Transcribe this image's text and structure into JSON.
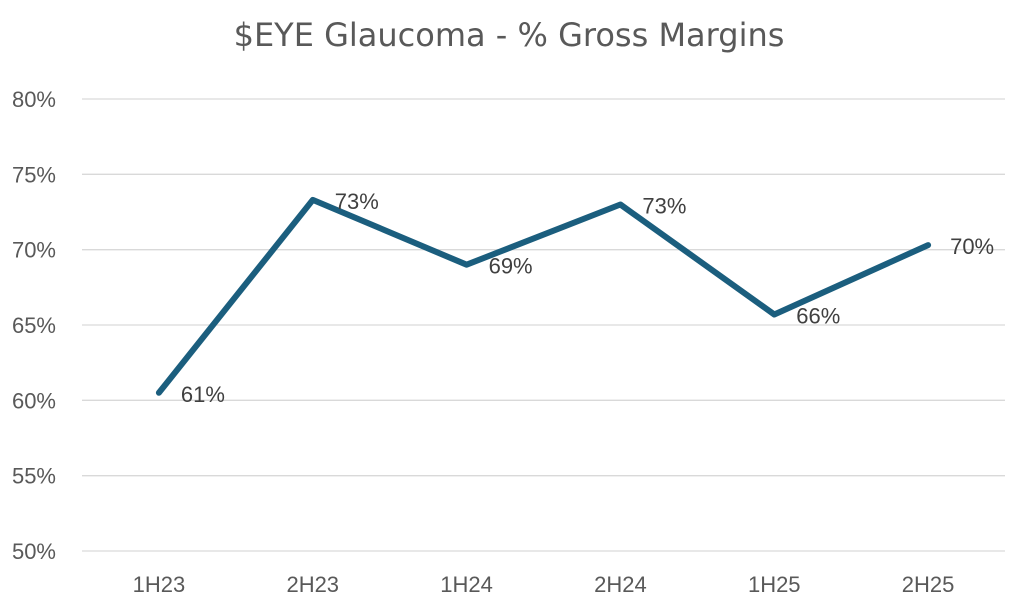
{
  "chart_data": {
    "type": "line",
    "title": "$EYE Glaucoma - % Gross Margins",
    "xlabel": "",
    "ylabel": "",
    "categories": [
      "1H23",
      "2H23",
      "1H24",
      "2H24",
      "1H25",
      "2H25"
    ],
    "series": [
      {
        "values": [
          60.5,
          73.3,
          69.0,
          73.0,
          65.7,
          70.3
        ],
        "data_labels": [
          "61%",
          "73%",
          "69%",
          "73%",
          "66%",
          "70%"
        ],
        "color": "#1b5e7e"
      }
    ],
    "ylim": [
      50,
      80
    ],
    "yticks": [
      50,
      55,
      60,
      65,
      70,
      75,
      80
    ],
    "ytick_labels": [
      "50%",
      "55%",
      "60%",
      "65%",
      "70%",
      "75%",
      "80%"
    ],
    "grid": true,
    "legend": "none"
  }
}
